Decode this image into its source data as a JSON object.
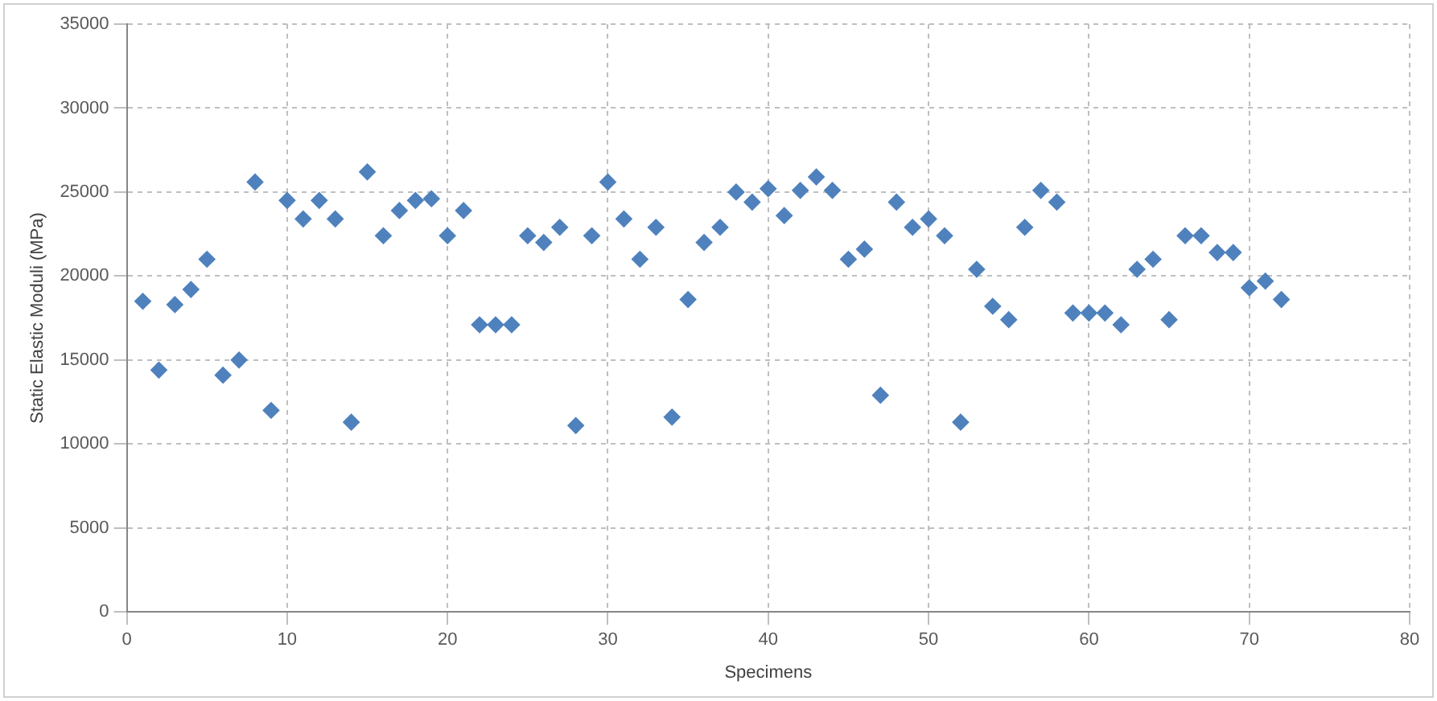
{
  "chart_data": {
    "type": "scatter",
    "xlabel": "Specimens",
    "ylabel": "Static Elastic Moduli (MPa)",
    "x": [
      1,
      2,
      3,
      4,
      5,
      6,
      7,
      8,
      9,
      10,
      11,
      12,
      13,
      14,
      15,
      16,
      17,
      18,
      19,
      20,
      21,
      22,
      23,
      24,
      25,
      26,
      27,
      28,
      29,
      30,
      31,
      32,
      33,
      34,
      35,
      36,
      37,
      38,
      39,
      40,
      41,
      42,
      43,
      44,
      45,
      46,
      47,
      48,
      49,
      50,
      51,
      52,
      53,
      54,
      55,
      56,
      57,
      58,
      59,
      60,
      61,
      62,
      63,
      64,
      65,
      66,
      67,
      68,
      69,
      70,
      71,
      72
    ],
    "series": [
      {
        "color": "#4f81bd",
        "values": [
          18500,
          14400,
          18300,
          19200,
          21000,
          14100,
          15000,
          25600,
          12000,
          24500,
          23400,
          24500,
          23400,
          11300,
          26200,
          22400,
          23900,
          24500,
          24600,
          22400,
          23900,
          17100,
          17100,
          17100,
          22400,
          22000,
          22900,
          11100,
          22400,
          25600,
          23400,
          21000,
          22900,
          11600,
          18600,
          22000,
          22900,
          25000,
          24400,
          25200,
          23600,
          25100,
          25900,
          25100,
          21000,
          21600,
          12900,
          24400,
          22900,
          23400,
          22400,
          11300,
          20400,
          18200,
          17400,
          22900,
          25100,
          24400,
          17800,
          17800,
          17800,
          17100,
          20400,
          21000,
          17400,
          22400,
          22400,
          21400,
          21400,
          19300,
          19700,
          18600
        ]
      }
    ],
    "xlim": [
      0,
      80
    ],
    "xticks": [
      0,
      10,
      20,
      30,
      40,
      50,
      60,
      70,
      80
    ],
    "ylim": [
      0,
      35000
    ],
    "yticks": [
      0,
      5000,
      10000,
      15000,
      20000,
      25000,
      30000,
      35000
    ],
    "grid": true,
    "legend": false,
    "marker": "diamond"
  }
}
